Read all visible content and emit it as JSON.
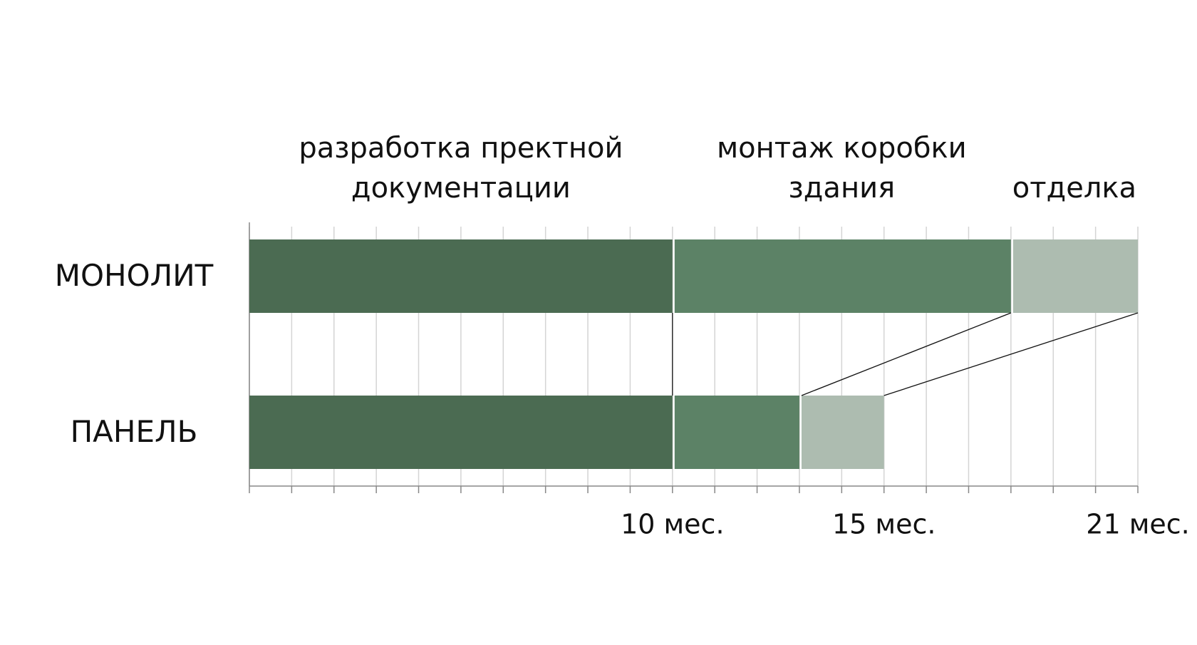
{
  "chart_data": {
    "type": "stacked-barh",
    "categories": [
      "МОНОЛИТ",
      "ПАНЕЛЬ"
    ],
    "series": [
      {
        "name": "разработка пректной документации",
        "color": "#4b6b52",
        "values": [
          10,
          10
        ]
      },
      {
        "name": "монтаж коробки здания",
        "color": "#5c8266",
        "values": [
          8,
          3
        ]
      },
      {
        "name": "отделка",
        "color": "#adbcb0",
        "values": [
          3,
          2
        ]
      }
    ],
    "xlim": [
      0,
      21
    ],
    "xticks": [
      {
        "value": 0,
        "label": null
      },
      {
        "value": 1,
        "label": null
      },
      {
        "value": 2,
        "label": null
      },
      {
        "value": 3,
        "label": null
      },
      {
        "value": 4,
        "label": null
      },
      {
        "value": 5,
        "label": null
      },
      {
        "value": 6,
        "label": null
      },
      {
        "value": 7,
        "label": null
      },
      {
        "value": 8,
        "label": null
      },
      {
        "value": 9,
        "label": null
      },
      {
        "value": 10,
        "label": "10 мес."
      },
      {
        "value": 11,
        "label": null
      },
      {
        "value": 12,
        "label": null
      },
      {
        "value": 13,
        "label": null
      },
      {
        "value": 14,
        "label": null
      },
      {
        "value": 15,
        "label": "15 мес."
      },
      {
        "value": 16,
        "label": null
      },
      {
        "value": 17,
        "label": null
      },
      {
        "value": 18,
        "label": null
      },
      {
        "value": 19,
        "label": null
      },
      {
        "value": 20,
        "label": null
      },
      {
        "value": 21,
        "label": "21 мес."
      }
    ],
    "grid": true
  }
}
